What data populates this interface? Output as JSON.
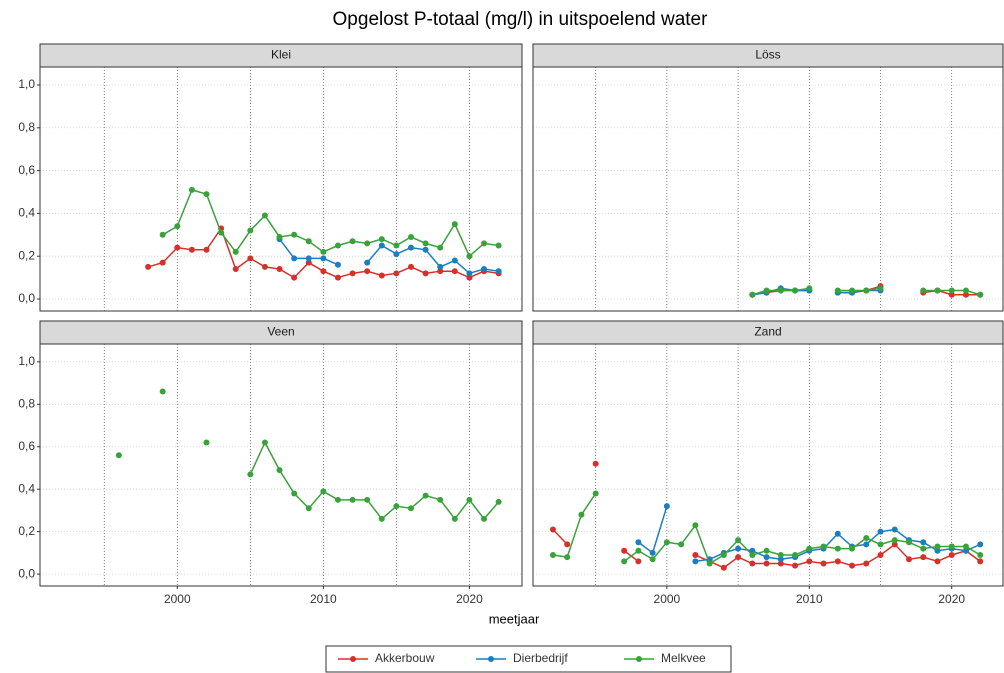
{
  "title": "Opgelost P-totaal (mg/l) in uitspoelend water",
  "xlabel": "meetjaar",
  "chart_data": [
    {
      "type": "line",
      "title": "Klei",
      "x": [
        1998,
        1999,
        2000,
        2001,
        2002,
        2003,
        2004,
        2005,
        2006,
        2007,
        2008,
        2009,
        2010,
        2011,
        2012,
        2013,
        2014,
        2015,
        2016,
        2017,
        2018,
        2019,
        2020,
        2021,
        2022
      ],
      "series": [
        {
          "name": "Akkerbouw",
          "color": "#d7302a",
          "values": [
            0.15,
            0.17,
            0.24,
            0.23,
            0.23,
            0.33,
            0.14,
            0.19,
            0.15,
            0.14,
            0.1,
            0.17,
            0.13,
            0.1,
            0.12,
            0.13,
            0.11,
            0.12,
            0.15,
            0.12,
            0.13,
            0.13,
            0.1,
            0.13,
            0.12
          ]
        },
        {
          "name": "Dierbedrijf",
          "color": "#1a7fc1",
          "values": [
            null,
            null,
            null,
            null,
            null,
            null,
            null,
            null,
            null,
            0.28,
            0.19,
            0.19,
            0.19,
            0.16,
            null,
            0.17,
            0.25,
            0.21,
            0.24,
            0.23,
            0.15,
            0.18,
            0.12,
            0.14,
            0.13
          ]
        },
        {
          "name": "Melkvee",
          "color": "#3aa23a",
          "values": [
            null,
            0.3,
            0.34,
            0.51,
            0.49,
            0.31,
            0.22,
            0.32,
            0.39,
            0.29,
            0.3,
            0.27,
            0.22,
            0.25,
            0.27,
            0.26,
            0.28,
            0.25,
            0.29,
            0.26,
            0.24,
            0.35,
            0.2,
            0.26,
            0.25
          ]
        }
      ],
      "xlim": [
        1990.6,
        2023.6
      ],
      "xticks": [
        2000,
        2010,
        2020
      ],
      "xminor": [
        1995,
        2005,
        2015
      ],
      "ylim": [
        -0.056,
        1.084
      ],
      "yticks": [
        {
          "value": 0,
          "label": "0,0"
        },
        {
          "value": 0.2,
          "label": "0,2"
        },
        {
          "value": 0.4,
          "label": "0,4"
        },
        {
          "value": 0.6,
          "label": "0,6"
        },
        {
          "value": 0.8,
          "label": "0,8"
        },
        {
          "value": 1,
          "label": "1,0"
        }
      ],
      "grid": true
    },
    {
      "type": "line",
      "title": "Löss",
      "x": [
        2006,
        2007,
        2008,
        2009,
        2010,
        2011,
        2012,
        2013,
        2014,
        2015,
        2016,
        2017,
        2018,
        2019,
        2020,
        2021,
        2022
      ],
      "series": [
        {
          "name": "Akkerbouw",
          "color": "#d7302a",
          "values": [
            0.02,
            0.03,
            0.04,
            0.04,
            0.04,
            null,
            0.03,
            0.03,
            0.04,
            0.06,
            null,
            null,
            0.03,
            0.04,
            0.02,
            0.02,
            0.02
          ]
        },
        {
          "name": "Dierbedrijf",
          "color": "#1a7fc1",
          "values": [
            0.02,
            0.03,
            0.05,
            0.04,
            0.04,
            null,
            0.03,
            0.03,
            0.04,
            0.04,
            null,
            null,
            null,
            null,
            null,
            null,
            null
          ]
        },
        {
          "name": "Melkvee",
          "color": "#3aa23a",
          "values": [
            0.02,
            0.04,
            0.04,
            0.04,
            0.05,
            null,
            0.04,
            0.04,
            0.04,
            0.05,
            null,
            null,
            0.04,
            0.04,
            0.04,
            0.04,
            0.02
          ]
        }
      ],
      "xlim": [
        1990.6,
        2023.6
      ],
      "xticks": [
        2000,
        2010,
        2020
      ],
      "xminor": [
        1995,
        2005,
        2015
      ],
      "ylim": [
        -0.056,
        1.084
      ],
      "yticks": [
        {
          "value": 0,
          "label": "0,0"
        },
        {
          "value": 0.2,
          "label": "0,2"
        },
        {
          "value": 0.4,
          "label": "0,4"
        },
        {
          "value": 0.6,
          "label": "0,6"
        },
        {
          "value": 0.8,
          "label": "0,8"
        },
        {
          "value": 1,
          "label": "1,0"
        }
      ],
      "grid": true
    },
    {
      "type": "line",
      "title": "Veen",
      "x": [
        1996,
        1997,
        1998,
        1999,
        2000,
        2001,
        2002,
        2003,
        2004,
        2005,
        2006,
        2007,
        2008,
        2009,
        2010,
        2011,
        2012,
        2013,
        2014,
        2015,
        2016,
        2017,
        2018,
        2019,
        2020,
        2021,
        2022
      ],
      "series": [
        {
          "name": "Melkvee",
          "color": "#3aa23a",
          "values": [
            0.56,
            null,
            null,
            0.86,
            null,
            null,
            0.62,
            null,
            null,
            0.47,
            0.62,
            0.49,
            0.38,
            0.31,
            0.39,
            0.35,
            0.35,
            0.35,
            0.26,
            0.32,
            0.31,
            0.37,
            0.35,
            0.26,
            0.35,
            0.26,
            0.34
          ]
        }
      ],
      "xlim": [
        1990.6,
        2023.6
      ],
      "xticks": [
        2000,
        2010,
        2020
      ],
      "xminor": [
        1995,
        2005,
        2015
      ],
      "ylim": [
        -0.056,
        1.084
      ],
      "yticks": [
        {
          "value": 0,
          "label": "0,0"
        },
        {
          "value": 0.2,
          "label": "0,2"
        },
        {
          "value": 0.4,
          "label": "0,4"
        },
        {
          "value": 0.6,
          "label": "0,6"
        },
        {
          "value": 0.8,
          "label": "0,8"
        },
        {
          "value": 1,
          "label": "1,0"
        }
      ],
      "grid": true
    },
    {
      "type": "line",
      "title": "Zand",
      "x": [
        1992,
        1993,
        1994,
        1995,
        1996,
        1997,
        1998,
        1999,
        2000,
        2001,
        2002,
        2003,
        2004,
        2005,
        2006,
        2007,
        2008,
        2009,
        2010,
        2011,
        2012,
        2013,
        2014,
        2015,
        2016,
        2017,
        2018,
        2019,
        2020,
        2021,
        2022
      ],
      "series": [
        {
          "name": "Akkerbouw",
          "color": "#d7302a",
          "values": [
            0.21,
            0.14,
            null,
            0.52,
            null,
            0.11,
            0.06,
            null,
            null,
            null,
            0.09,
            0.06,
            0.03,
            0.08,
            0.05,
            0.05,
            0.05,
            0.04,
            0.06,
            0.05,
            0.06,
            0.04,
            0.05,
            0.09,
            0.14,
            0.07,
            0.08,
            0.06,
            0.09,
            0.11,
            0.06
          ]
        },
        {
          "name": "Dierbedrijf",
          "color": "#1a7fc1",
          "values": [
            null,
            null,
            null,
            null,
            null,
            null,
            0.15,
            0.1,
            0.32,
            null,
            0.06,
            0.07,
            0.1,
            0.12,
            0.11,
            0.08,
            0.07,
            0.08,
            0.11,
            0.12,
            0.19,
            0.13,
            0.14,
            0.2,
            0.21,
            0.16,
            0.15,
            0.11,
            0.12,
            0.11,
            0.14
          ]
        },
        {
          "name": "Melkvee",
          "color": "#3aa23a",
          "values": [
            0.09,
            0.08,
            0.28,
            0.38,
            null,
            0.06,
            0.11,
            0.07,
            0.15,
            0.14,
            0.23,
            0.05,
            0.09,
            0.16,
            0.09,
            0.11,
            0.09,
            0.09,
            0.12,
            0.13,
            0.12,
            0.12,
            0.17,
            0.14,
            0.16,
            0.15,
            0.12,
            0.13,
            0.13,
            0.13,
            0.09
          ]
        }
      ],
      "xlim": [
        1990.6,
        2023.6
      ],
      "xticks": [
        2000,
        2010,
        2020
      ],
      "xminor": [
        1995,
        2005,
        2015
      ],
      "ylim": [
        -0.056,
        1.084
      ],
      "yticks": [
        {
          "value": 0,
          "label": "0,0"
        },
        {
          "value": 0.2,
          "label": "0,2"
        },
        {
          "value": 0.4,
          "label": "0,4"
        },
        {
          "value": 0.6,
          "label": "0,6"
        },
        {
          "value": 0.8,
          "label": "0,8"
        },
        {
          "value": 1,
          "label": "1,0"
        }
      ],
      "grid": true
    }
  ]
}
